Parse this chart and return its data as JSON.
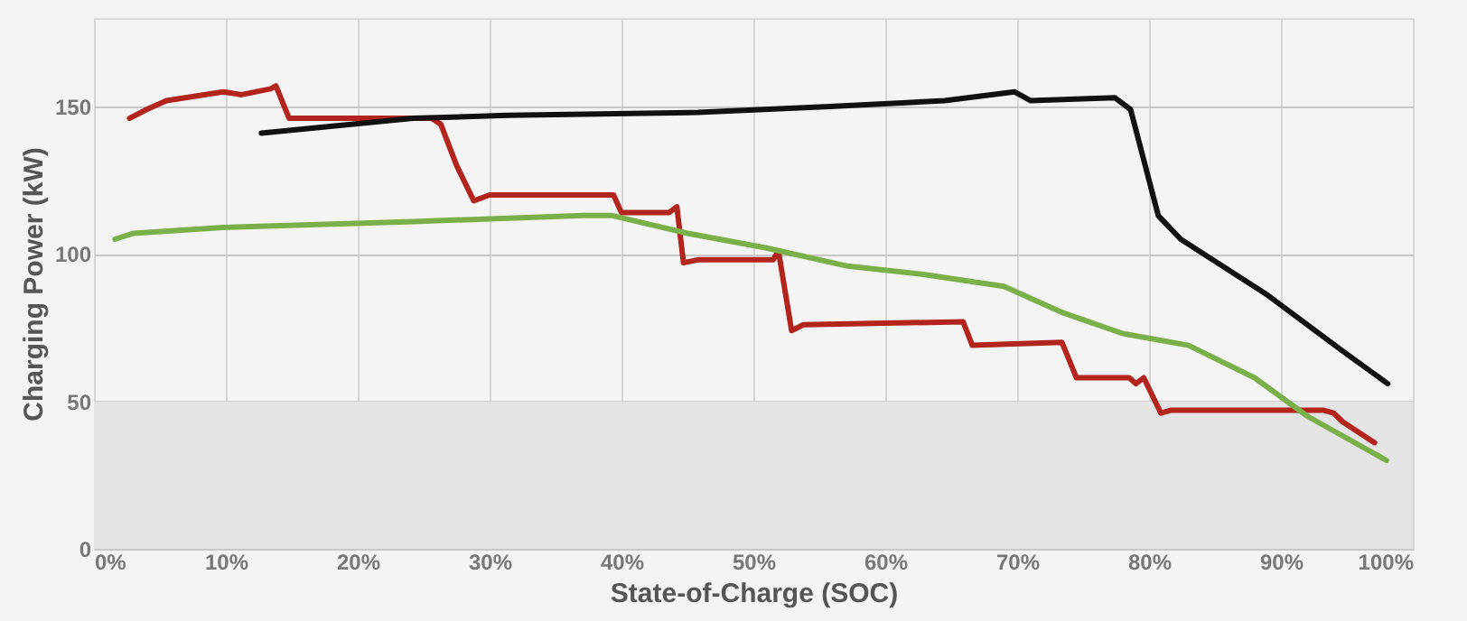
{
  "chart_data": {
    "type": "line",
    "xlabel": "State-of-Charge  (SOC)",
    "ylabel": "Charging Power (kW)",
    "xlim": [
      0,
      100
    ],
    "ylim": [
      0,
      180
    ],
    "xticks": [
      {
        "value": 0,
        "label": "0%"
      },
      {
        "value": 10,
        "label": "10%"
      },
      {
        "value": 20,
        "label": "20%"
      },
      {
        "value": 30,
        "label": "30%"
      },
      {
        "value": 40,
        "label": "40%"
      },
      {
        "value": 50,
        "label": "50%"
      },
      {
        "value": 60,
        "label": "60%"
      },
      {
        "value": 70,
        "label": "70%"
      },
      {
        "value": 80,
        "label": "80%"
      },
      {
        "value": 90,
        "label": "90%"
      },
      {
        "value": 100,
        "label": "100%"
      }
    ],
    "yticks": [
      0,
      50,
      100,
      150
    ],
    "grid": true,
    "legend": false,
    "marker": "none",
    "line_style": "solid",
    "bands": [
      {
        "axis": "y",
        "from": 0,
        "to": 50,
        "color": "#e4e4e4"
      }
    ],
    "series": [
      {
        "color": "#b3241c",
        "x": [
          2.7,
          4.0,
          5.5,
          9.8,
          11.2,
          13.4,
          13.8,
          14.8,
          17,
          25.6,
          26.3,
          27.5,
          28.8,
          30,
          38.6,
          39.4,
          40,
          43.6,
          44.2,
          44.7,
          45.8,
          51.5,
          51.9,
          52.9,
          53.8,
          65.9,
          66.6,
          73.4,
          74.5,
          78.5,
          79,
          79.6,
          80.9,
          81.7,
          89,
          93.2,
          94,
          94.7,
          97.1
        ],
        "values": [
          146,
          149,
          152,
          155,
          154,
          156,
          157,
          146,
          146,
          146,
          144,
          130,
          118,
          120,
          120,
          120,
          114,
          114,
          116,
          97,
          98,
          98,
          101,
          74,
          76,
          77,
          69,
          70,
          58,
          58,
          56,
          58,
          46,
          47,
          47,
          47,
          46,
          43,
          36
        ]
      },
      {
        "color": "#111111",
        "x": [
          12.7,
          24.2,
          31.4,
          45.8,
          55.8,
          64.5,
          69.8,
          71,
          77.4,
          78.6,
          80.7,
          82.4,
          89,
          94.7,
          98.1
        ],
        "values": [
          141,
          146,
          147,
          148,
          150,
          152,
          155,
          152,
          153,
          149,
          113,
          105,
          86,
          67,
          56
        ]
      },
      {
        "color": "#7ab04a",
        "x": [
          1.6,
          3,
          9.8,
          24.2,
          37.1,
          39.3,
          45,
          51,
          57,
          63,
          69,
          73.5,
          78,
          83,
          88,
          92,
          98
        ],
        "values": [
          105,
          107,
          109,
          111,
          113,
          113,
          107,
          102,
          96,
          93,
          89,
          80,
          73,
          69,
          58,
          45,
          30
        ]
      }
    ]
  }
}
